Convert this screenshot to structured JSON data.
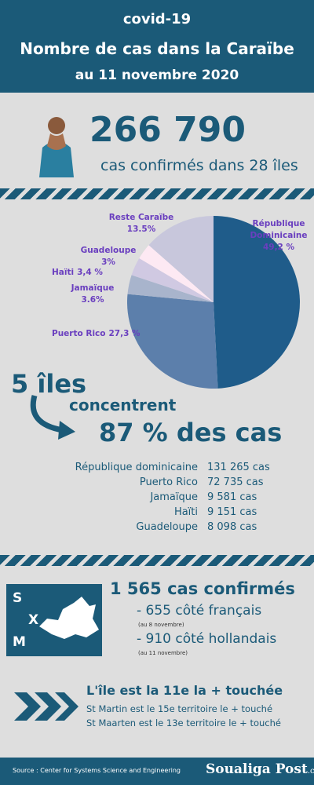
{
  "header": {
    "line1": "covid-19",
    "line2": "Nombre de cas dans la Caraïbe",
    "line3": "au 11 novembre 2020"
  },
  "total": {
    "number": "266 790",
    "caption": "cas confirmés dans 28 îles"
  },
  "chart_data": {
    "type": "pie",
    "categories": [
      "République Dominicaine",
      "Puerto Rico",
      "Jamaïque",
      "Haïti",
      "Guadeloupe",
      "Reste Caraïbe"
    ],
    "values": [
      49.2,
      27.3,
      3.6,
      3.4,
      3,
      13.5
    ],
    "value_labels": [
      "49,2 %",
      "27,3 %",
      "3.6%",
      "3,4 %",
      "3%",
      "13.5%"
    ],
    "colors": [
      "#1f5c8a",
      "#5c7fab",
      "#a8b4cc",
      "#d0c9e2",
      "#fde9f3",
      "#c8c7dc"
    ]
  },
  "concentration": {
    "line1": "5 îles",
    "line2": "concentrent",
    "line3": "87 % des cas",
    "rows": [
      [
        "République dominicaine",
        "131 265 cas"
      ],
      [
        "Puerto Rico",
        "72 735 cas"
      ],
      [
        "Jamaïque",
        "9 581 cas"
      ],
      [
        "Haïti",
        "9 151 cas"
      ],
      [
        "Guadeloupe",
        "8 098 cas"
      ]
    ]
  },
  "sxm": {
    "letters": [
      "S",
      "X",
      "M"
    ],
    "title": "1 565 cas confirmés",
    "items": [
      {
        "text": "- 655 côté français",
        "note": "(au 8 novembre)"
      },
      {
        "text": "- 910 côté hollandais",
        "note": "(au 11 novembre)"
      }
    ]
  },
  "rank": {
    "title": "L'île est la 11e la + touchée",
    "lines": [
      "St Martin est le 15e territoire le + touché",
      "St Maarten est le 13e territoire le + touché"
    ]
  },
  "footer": {
    "source": "Source : Center for Systems Science and Engineering",
    "brand": "Soualiga Post",
    "brand_suffix": ".com"
  }
}
